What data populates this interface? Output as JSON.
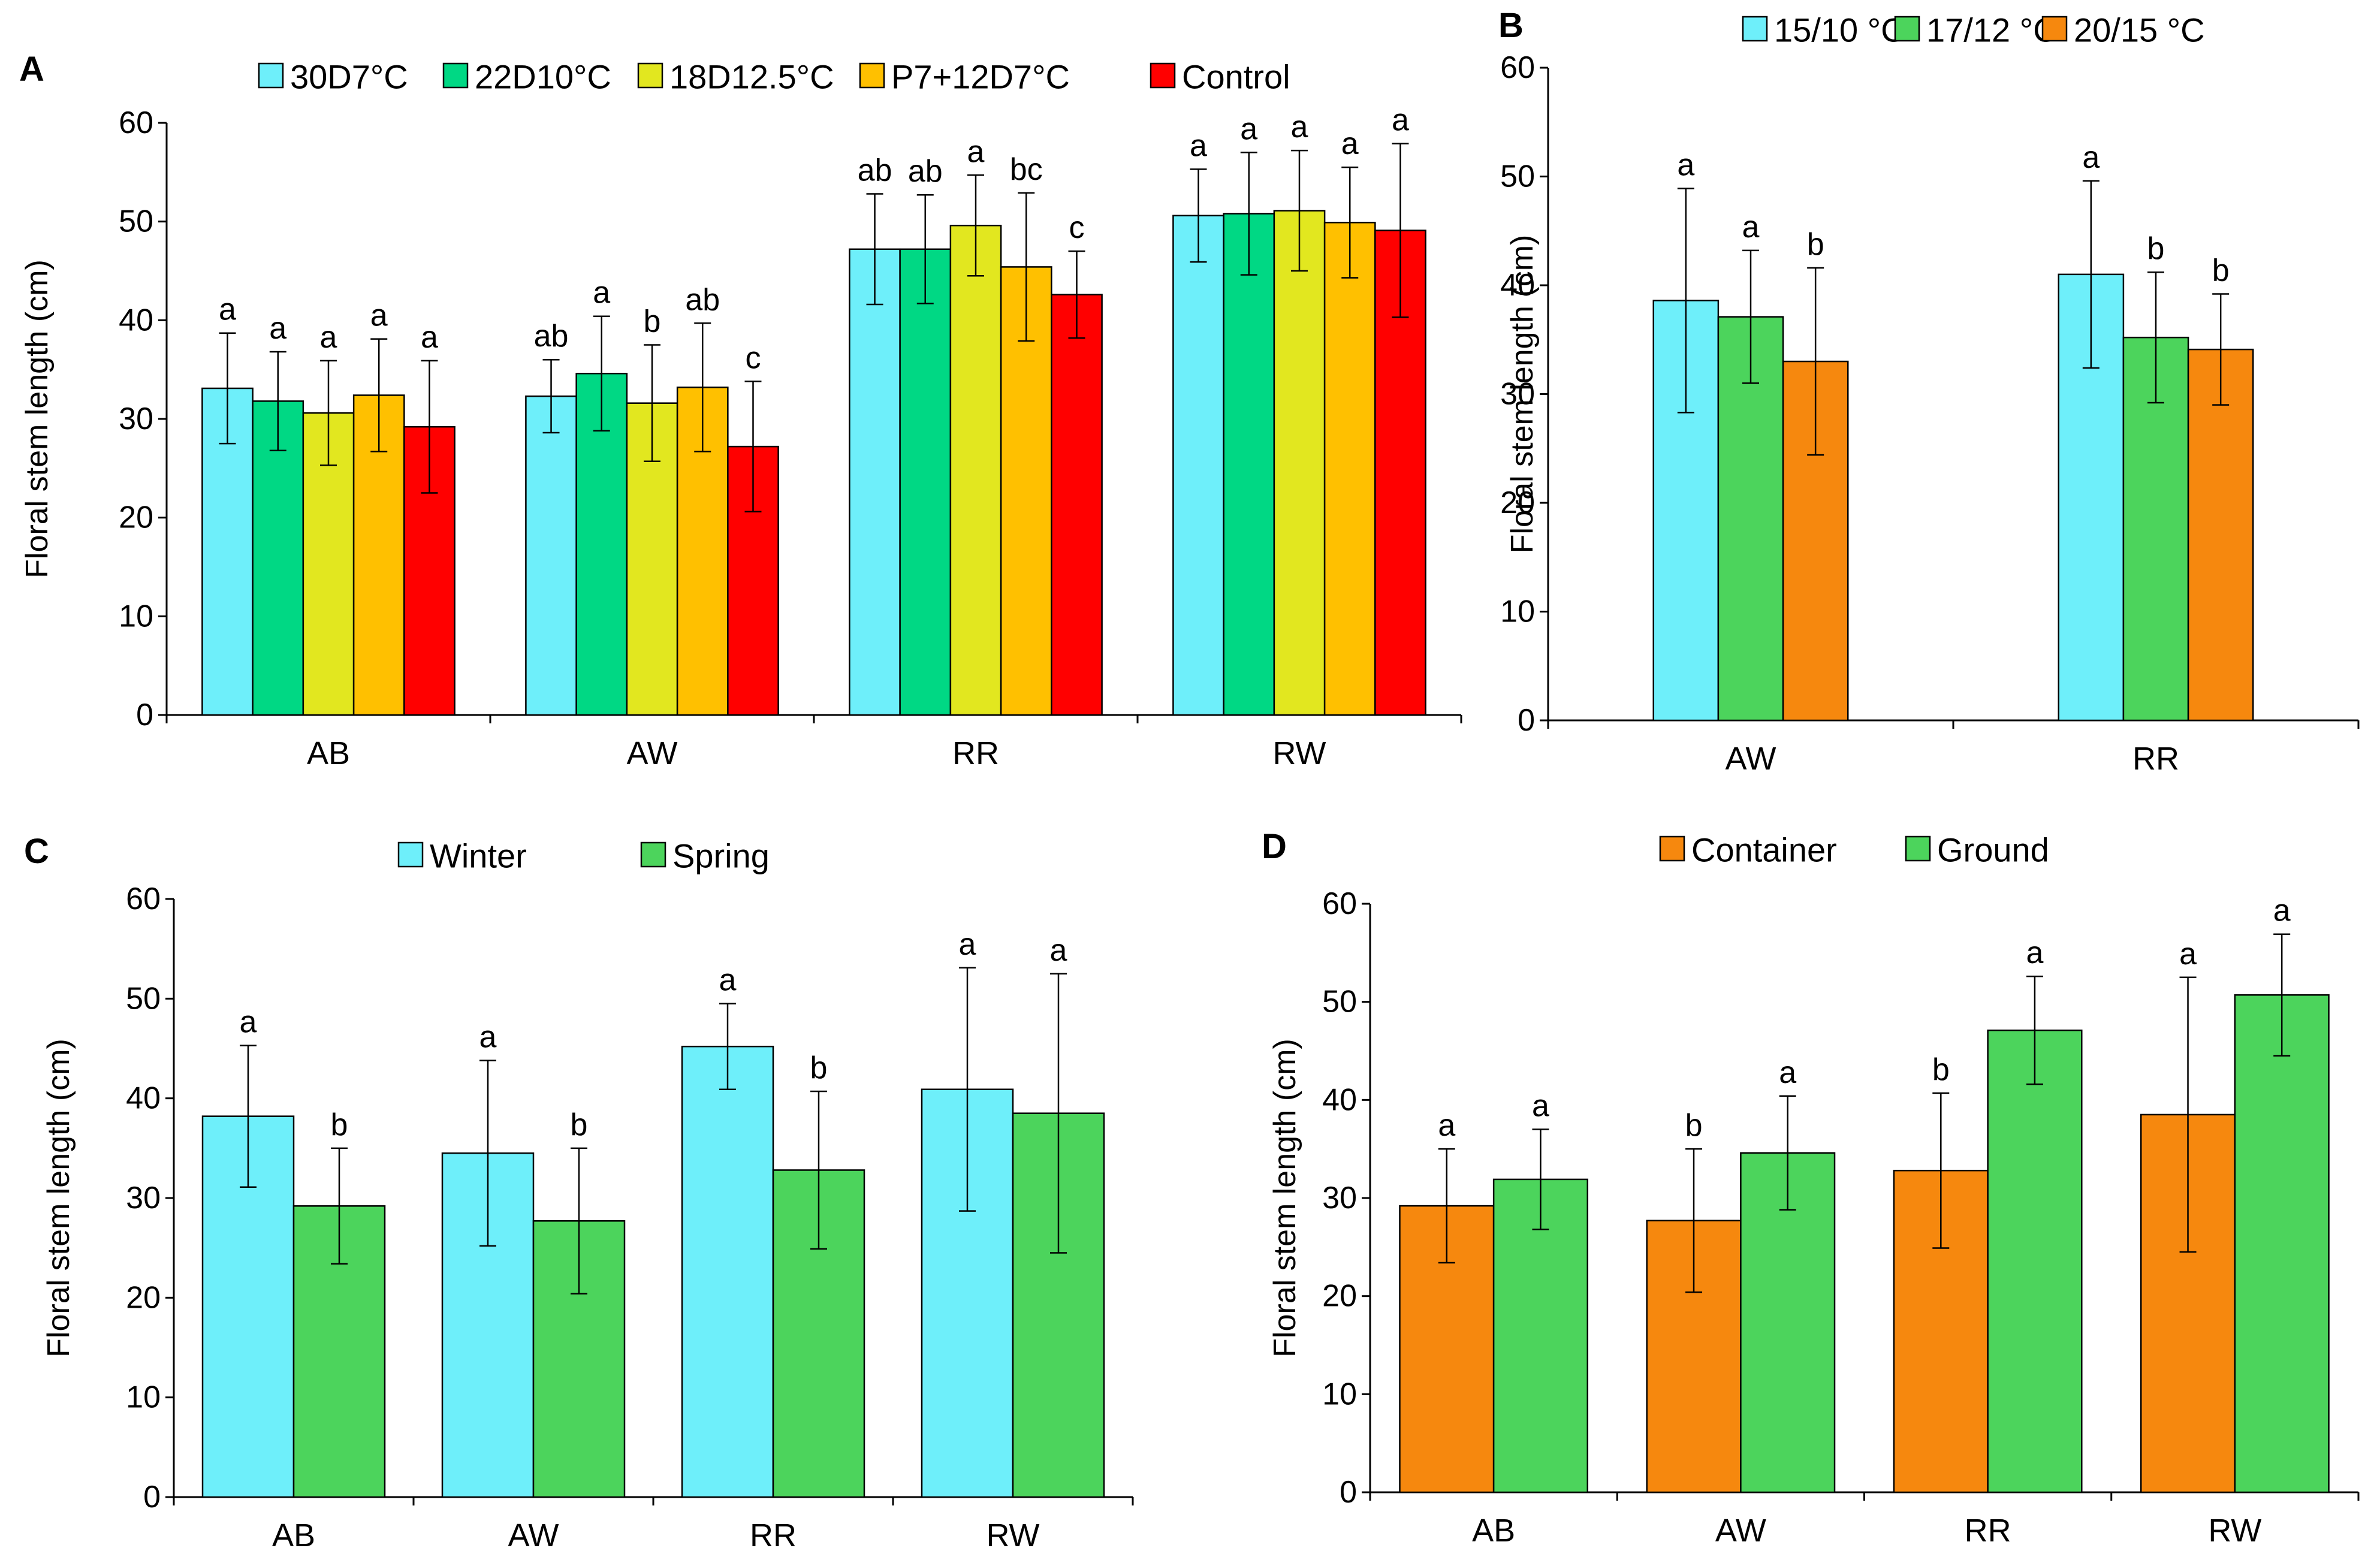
{
  "chart_data": [
    {
      "id": "A",
      "panel_label": "A",
      "type": "bar",
      "ylabel": "Floral stem length (cm)",
      "ylim": [
        0,
        60
      ],
      "yticks": [
        0,
        10,
        20,
        30,
        40,
        50,
        60
      ],
      "legend_position": "top",
      "categories": [
        "AB",
        "AW",
        "RR",
        "RW"
      ],
      "series": [
        {
          "name": "30D7°C",
          "color": "#6EEFFA",
          "values": [
            33.1,
            32.3,
            47.2,
            50.6
          ],
          "errors": [
            5.6,
            3.7,
            5.6,
            4.7
          ],
          "labels": [
            "a",
            "ab",
            "ab",
            "a"
          ]
        },
        {
          "name": "22D10°C",
          "color": "#00D884",
          "values": [
            31.8,
            34.6,
            47.2,
            50.8
          ],
          "errors": [
            5.0,
            5.8,
            5.5,
            6.2
          ],
          "labels": [
            "a",
            "a",
            "ab",
            "a"
          ]
        },
        {
          "name": "18D12.5°C",
          "color": "#E2E71F",
          "values": [
            30.6,
            31.6,
            49.6,
            51.1
          ],
          "errors": [
            5.3,
            5.9,
            5.1,
            6.1
          ],
          "labels": [
            "a",
            "b",
            "a",
            "a"
          ]
        },
        {
          "name": "P7+12D7°C",
          "color": "#FFC000",
          "values": [
            32.4,
            33.2,
            45.4,
            49.9
          ],
          "errors": [
            5.7,
            6.5,
            7.5,
            5.6
          ],
          "labels": [
            "a",
            "ab",
            "bc",
            "a"
          ]
        },
        {
          "name": "Control",
          "color": "#FF0000",
          "values": [
            29.2,
            27.2,
            42.6,
            49.1
          ],
          "errors": [
            6.7,
            6.6,
            4.4,
            8.8
          ],
          "labels": [
            "a",
            "c",
            "c",
            "a"
          ]
        }
      ]
    },
    {
      "id": "B",
      "panel_label": "B",
      "type": "bar",
      "ylabel": "Floral stem length (cm)",
      "ylim": [
        0,
        60
      ],
      "yticks": [
        0,
        10,
        20,
        30,
        40,
        50,
        60
      ],
      "legend_position": "top",
      "categories": [
        "AW",
        "RR"
      ],
      "series": [
        {
          "name": "15/10 °C",
          "color": "#6EEFFA",
          "values": [
            38.6,
            41.0
          ],
          "errors": [
            10.3,
            8.6
          ],
          "labels": [
            "a",
            "a"
          ]
        },
        {
          "name": "17/12 °C",
          "color": "#4CD45C",
          "values": [
            37.1,
            35.2
          ],
          "errors": [
            6.1,
            6.0
          ],
          "labels": [
            "a",
            "b"
          ]
        },
        {
          "name": "20/15 °C",
          "color": "#F6880E",
          "values": [
            33.0,
            34.1
          ],
          "errors": [
            8.6,
            5.1
          ],
          "labels": [
            "b",
            "b"
          ]
        }
      ]
    },
    {
      "id": "C",
      "panel_label": "C",
      "type": "bar",
      "ylabel": "Floral stem length (cm)",
      "ylim": [
        0,
        60
      ],
      "yticks": [
        0,
        10,
        20,
        30,
        40,
        50,
        60
      ],
      "legend_position": "top",
      "categories": [
        "AB",
        "AW",
        "RR",
        "RW"
      ],
      "series": [
        {
          "name": "Winter",
          "color": "#6EEFFA",
          "values": [
            38.2,
            34.5,
            45.2,
            40.9
          ],
          "errors": [
            7.1,
            9.3,
            4.3,
            12.2
          ],
          "labels": [
            "a",
            "a",
            "a",
            "a"
          ]
        },
        {
          "name": "Spring",
          "color": "#4CD45C",
          "values": [
            29.2,
            27.7,
            32.8,
            38.5
          ],
          "errors": [
            5.8,
            7.3,
            7.9,
            14.0
          ],
          "labels": [
            "b",
            "b",
            "b",
            "a"
          ]
        }
      ]
    },
    {
      "id": "D",
      "panel_label": "D",
      "type": "bar",
      "ylabel": "Floral stem length (cm)",
      "ylim": [
        0,
        60
      ],
      "yticks": [
        0,
        10,
        20,
        30,
        40,
        50,
        60
      ],
      "legend_position": "top",
      "categories": [
        "AB",
        "AW",
        "RR",
        "RW"
      ],
      "series": [
        {
          "name": "Container",
          "color": "#F6880E",
          "values": [
            29.2,
            27.7,
            32.8,
            38.5
          ],
          "errors": [
            5.8,
            7.3,
            7.9,
            14.0
          ],
          "labels": [
            "a",
            "b",
            "b",
            "a"
          ]
        },
        {
          "name": "Ground",
          "color": "#4CD45C",
          "values": [
            31.9,
            34.6,
            47.1,
            50.7
          ],
          "errors": [
            5.1,
            5.8,
            5.5,
            6.2
          ],
          "labels": [
            "a",
            "a",
            "a",
            "a"
          ]
        }
      ]
    }
  ]
}
